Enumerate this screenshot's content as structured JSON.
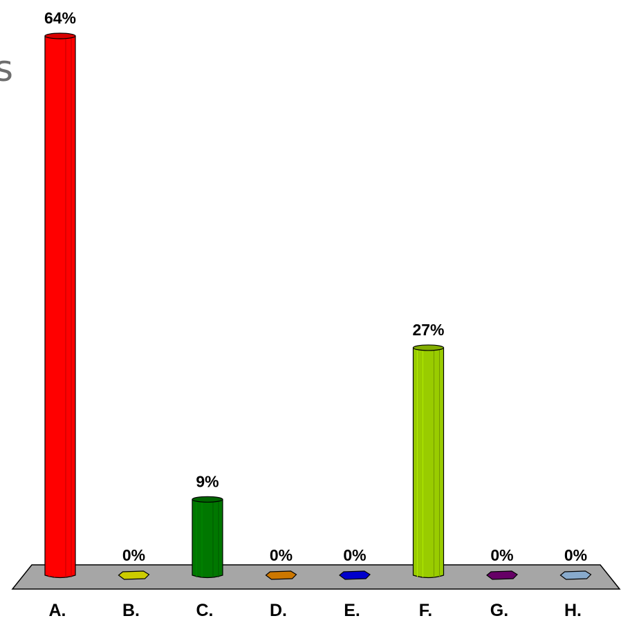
{
  "background_text": {
    "fragment": "s"
  },
  "chart_data": {
    "type": "bar",
    "categories": [
      "A.",
      "B.",
      "C.",
      "D.",
      "E.",
      "F.",
      "G.",
      "H."
    ],
    "values": [
      64,
      0,
      9,
      0,
      0,
      27,
      0,
      0
    ],
    "value_labels": [
      "64%",
      "0%",
      "9%",
      "0%",
      "0%",
      "27%",
      "0%",
      "0%"
    ],
    "colors": [
      "#ff0000",
      "#cccc00",
      "#007700",
      "#cc7700",
      "#0000cc",
      "#99cc00",
      "#660066",
      "#88aacc"
    ],
    "ylim": [
      0,
      64
    ],
    "grid": false,
    "legend": "none",
    "floor_color": "#a6a6a6",
    "title": "",
    "xlabel": "",
    "ylabel": ""
  }
}
